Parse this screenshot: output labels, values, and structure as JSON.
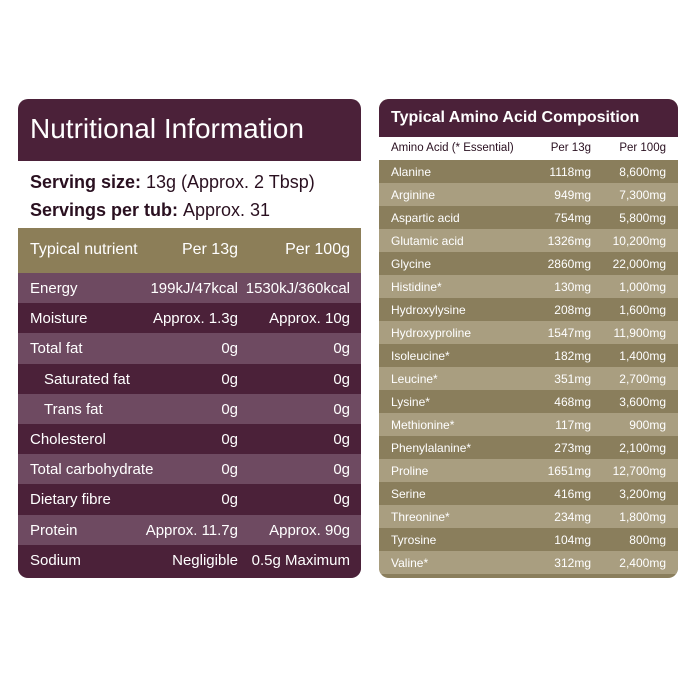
{
  "nutrition": {
    "title": "Nutritional Information",
    "serving_size": {
      "label": "Serving size:",
      "value": "13g (Approx. 2 Tbsp)"
    },
    "servings_per_tub": {
      "label": "Servings per tub:",
      "value": "Approx. 31"
    },
    "header": [
      "Typical nutrient",
      "Per 13g",
      "Per 100g"
    ],
    "rows": [
      [
        "Energy",
        "199kJ/47kcal",
        "1530kJ/360kcal"
      ],
      [
        "Moisture",
        "Approx. 1.3g",
        "Approx. 10g"
      ],
      [
        "Total fat",
        "0g",
        "0g"
      ],
      [
        "Saturated fat",
        "0g",
        "0g"
      ],
      [
        "Trans fat",
        "0g",
        "0g"
      ],
      [
        "Cholesterol",
        "0g",
        "0g"
      ],
      [
        "Total carbohydrate",
        "0g",
        "0g"
      ],
      [
        "Dietary fibre",
        "0g",
        "0g"
      ],
      [
        "Protein",
        "Approx. 11.7g",
        "Approx. 90g"
      ],
      [
        "Sodium",
        "Negligible",
        "0.5g Maximum"
      ]
    ]
  },
  "amino": {
    "title": "Typical Amino Acid Composition",
    "header": [
      "Amino Acid (* Essential)",
      "Per 13g",
      "Per 100g"
    ],
    "rows": [
      [
        "Alanine",
        "1118mg",
        "8,600mg"
      ],
      [
        "Arginine",
        "949mg",
        "7,300mg"
      ],
      [
        "Aspartic acid",
        "754mg",
        "5,800mg"
      ],
      [
        "Glutamic acid",
        "1326mg",
        "10,200mg"
      ],
      [
        "Glycine",
        "2860mg",
        "22,000mg"
      ],
      [
        "Histidine*",
        "130mg",
        "1,000mg"
      ],
      [
        "Hydroxylysine",
        "208mg",
        "1,600mg"
      ],
      [
        "Hydroxyproline",
        "1547mg",
        "11,900mg"
      ],
      [
        "Isoleucine*",
        "182mg",
        "1,400mg"
      ],
      [
        "Leucine*",
        "351mg",
        "2,700mg"
      ],
      [
        "Lysine*",
        "468mg",
        "3,600mg"
      ],
      [
        "Methionine*",
        "117mg",
        "900mg"
      ],
      [
        "Phenylalanine*",
        "273mg",
        "2,100mg"
      ],
      [
        "Proline",
        "1651mg",
        "12,700mg"
      ],
      [
        "Serine",
        "416mg",
        "3,200mg"
      ],
      [
        "Threonine*",
        "234mg",
        "1,800mg"
      ],
      [
        "Tyrosine",
        "104mg",
        "800mg"
      ],
      [
        "Valine*",
        "312mg",
        "2,400mg"
      ]
    ]
  }
}
